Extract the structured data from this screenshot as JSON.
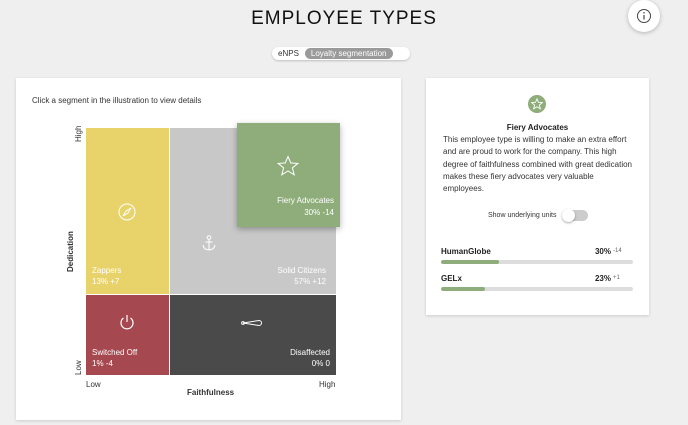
{
  "page": {
    "title": "EMPLOYEE TYPES",
    "info_icon": "info-icon"
  },
  "toggle": {
    "options": [
      "eNPS",
      "Loyalty segmentation"
    ],
    "active_index": 1
  },
  "chart_panel": {
    "instruction": "Click a segment in the illustration to view details",
    "y_axis": {
      "title": "Dedication",
      "high": "High",
      "low": "Low"
    },
    "x_axis": {
      "title": "Faithfulness",
      "low": "Low",
      "high": "High"
    },
    "quadrants": [
      {
        "id": "zappers",
        "name": "Zappers",
        "stats": "13% +7",
        "color": "#e8d36a",
        "icon": "compass-icon"
      },
      {
        "id": "solid-citizens",
        "name": "Solid Citizens",
        "stats": "57% +12",
        "color": "#c8c8c8",
        "icon": "anchor-icon"
      },
      {
        "id": "switched-off",
        "name": "Switched Off",
        "stats": "1% -4",
        "color": "#a5484f",
        "icon": "power-icon"
      },
      {
        "id": "disaffected",
        "name": "Disaffected",
        "stats": "0% 0",
        "color": "#4a4a4a",
        "icon": "safety-pin-icon"
      },
      {
        "id": "fiery-advocates",
        "name": "Fiery Advocates",
        "stats": "30% -14",
        "color": "#8fac7b",
        "icon": "star-icon",
        "selected": true
      }
    ]
  },
  "detail_panel": {
    "icon": "star-icon",
    "title": "Fiery Advocates",
    "description": "This employee type is willing to make an extra effort and are proud to work for the company. This high degree of faithfulness combined with great dedication makes these fiery advocates very valuable employees.",
    "show_units_label": "Show underlying units",
    "show_units_on": false,
    "metrics": [
      {
        "name": "HumanGlobe",
        "percent": "30%",
        "delta": "-14",
        "fill_fraction": 0.3
      },
      {
        "name": "GELx",
        "percent": "23%",
        "delta": "+1",
        "fill_fraction": 0.23
      }
    ]
  }
}
